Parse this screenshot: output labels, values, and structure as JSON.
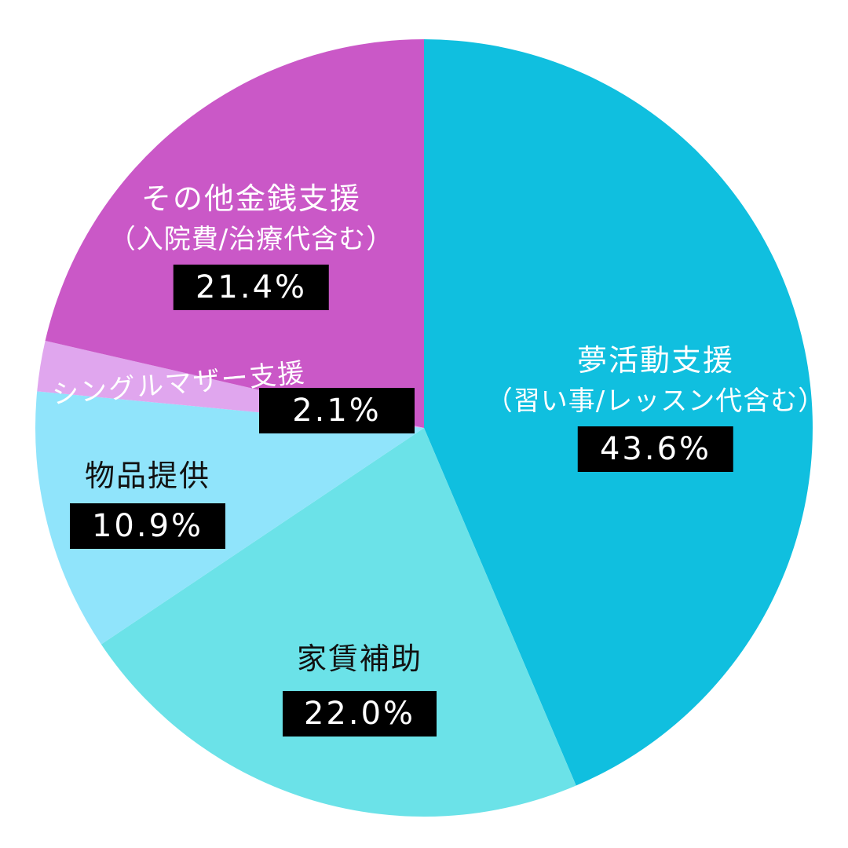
{
  "chart_data": {
    "type": "pie",
    "slices": [
      {
        "label": "夢活動支援",
        "sublabel": "（習い事/レッスン代含む）",
        "value": 43.6,
        "value_label": "43.6%",
        "color": "#10BFDF"
      },
      {
        "label": "家賃補助",
        "sublabel": "",
        "value": 22.0,
        "value_label": "22.0%",
        "color": "#6BE2E8"
      },
      {
        "label": "物品提供",
        "sublabel": "",
        "value": 10.9,
        "value_label": "10.9%",
        "color": "#90E4FB"
      },
      {
        "label": "シングルマザー支援",
        "sublabel": "",
        "value": 2.1,
        "value_label": "2.1%",
        "color": "#E0A6EE"
      },
      {
        "label": "その他金銭支援",
        "sublabel": "（入院費/治療代含む）",
        "value": 21.4,
        "value_label": "21.4%",
        "color": "#CA58C7"
      }
    ],
    "start": "top",
    "direction": "clockwise",
    "legend": "none"
  }
}
